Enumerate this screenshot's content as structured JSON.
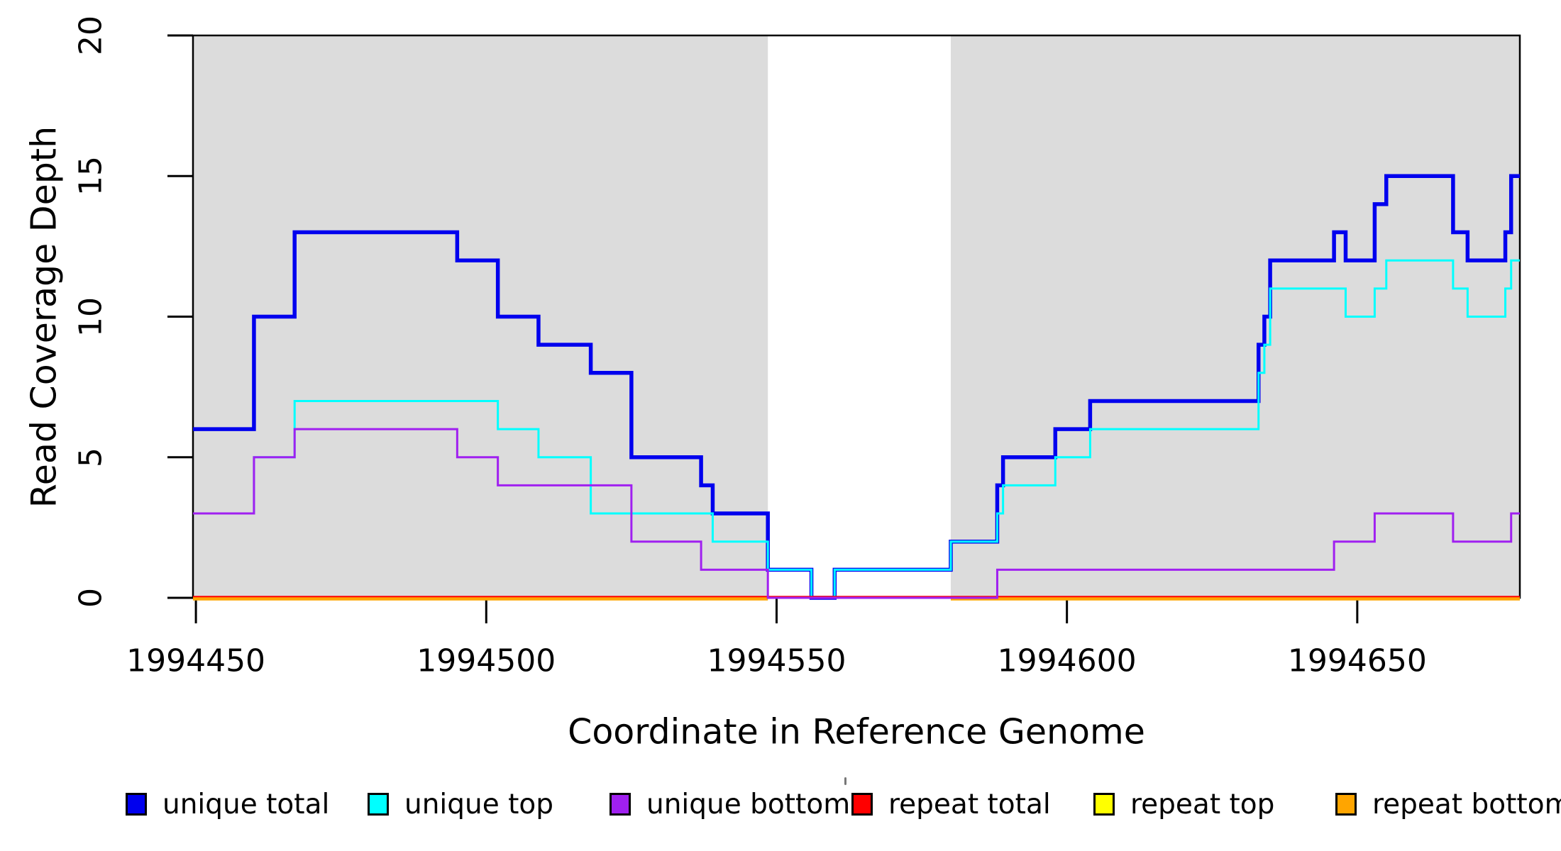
{
  "chart_data": {
    "type": "line",
    "subtype": "step",
    "title": "",
    "xlabel": "Coordinate in Reference Genome",
    "ylabel": "Read Coverage Depth",
    "x_domain": [
      1994449.5,
      1994678
    ],
    "ylim": [
      0,
      20
    ],
    "grid": false,
    "legend_position": "bottom",
    "axis_color": "#000000",
    "band_color": "#DCDCDC",
    "x_ticks": [
      {
        "value": 1994450,
        "label": "1994450"
      },
      {
        "value": 1994500,
        "label": "1994500"
      },
      {
        "value": 1994550,
        "label": "1994550"
      },
      {
        "value": 1994600,
        "label": "1994600"
      },
      {
        "value": 1994650,
        "label": "1994650"
      }
    ],
    "y_ticks": [
      {
        "value": 0,
        "label": "0"
      },
      {
        "value": 5,
        "label": "5"
      },
      {
        "value": 10,
        "label": "10"
      },
      {
        "value": 15,
        "label": "15"
      },
      {
        "value": 20,
        "label": "20"
      }
    ],
    "shaded_bands": [
      {
        "x_from": 1994449.5,
        "x_to": 1994548.5
      },
      {
        "x_from": 1994580,
        "x_to": 1994678
      }
    ],
    "series": [
      {
        "name": "unique total",
        "color": "#0000EE",
        "line_width": 5.5,
        "steps": [
          [
            1994449.5,
            6
          ],
          [
            1994460,
            10
          ],
          [
            1994467,
            13
          ],
          [
            1994495,
            12
          ],
          [
            1994502,
            10
          ],
          [
            1994509,
            9
          ],
          [
            1994518,
            8
          ],
          [
            1994525,
            5
          ],
          [
            1994537,
            4
          ],
          [
            1994539,
            3
          ],
          [
            1994548.5,
            1
          ],
          [
            1994556,
            0
          ],
          [
            1994560,
            1
          ],
          [
            1994580,
            2
          ],
          [
            1994588,
            4
          ],
          [
            1994589,
            5
          ],
          [
            1994598,
            6
          ],
          [
            1994604,
            7
          ],
          [
            1994633,
            9
          ],
          [
            1994634,
            10
          ],
          [
            1994635,
            12
          ],
          [
            1994646,
            13
          ],
          [
            1994648,
            12
          ],
          [
            1994653,
            14
          ],
          [
            1994655,
            15
          ],
          [
            1994666.5,
            13
          ],
          [
            1994669,
            12
          ],
          [
            1994675.5,
            13
          ],
          [
            1994676.5,
            15
          ]
        ]
      },
      {
        "name": "unique top",
        "color": "#00FFFF",
        "line_width": 3,
        "steps": [
          [
            1994449.5,
            3
          ],
          [
            1994460,
            5
          ],
          [
            1994467,
            7
          ],
          [
            1994502,
            6
          ],
          [
            1994509,
            5
          ],
          [
            1994518,
            3
          ],
          [
            1994539,
            2
          ],
          [
            1994548.5,
            1
          ],
          [
            1994556,
            0
          ],
          [
            1994560,
            1
          ],
          [
            1994580,
            2
          ],
          [
            1994588,
            3
          ],
          [
            1994589,
            4
          ],
          [
            1994598,
            5
          ],
          [
            1994604,
            6
          ],
          [
            1994633,
            8
          ],
          [
            1994634,
            9
          ],
          [
            1994635,
            11
          ],
          [
            1994648,
            10
          ],
          [
            1994653,
            11
          ],
          [
            1994655,
            12
          ],
          [
            1994666.5,
            11
          ],
          [
            1994669,
            10
          ],
          [
            1994675.5,
            11
          ],
          [
            1994676.5,
            12
          ]
        ]
      },
      {
        "name": "unique bottom",
        "color": "#A020F0",
        "line_width": 3,
        "steps": [
          [
            1994449.5,
            3
          ],
          [
            1994460,
            5
          ],
          [
            1994467,
            6
          ],
          [
            1994495,
            5
          ],
          [
            1994502,
            4
          ],
          [
            1994525,
            2
          ],
          [
            1994537,
            1
          ],
          [
            1994548.5,
            0
          ],
          [
            1994588,
            1
          ],
          [
            1994646,
            2
          ],
          [
            1994653,
            3
          ],
          [
            1994666.5,
            2
          ],
          [
            1994676.5,
            3
          ]
        ]
      },
      {
        "name": "repeat total",
        "color": "#FF0000",
        "line_width": 2.5,
        "steps": [
          [
            1994449.5,
            0
          ]
        ]
      },
      {
        "name": "repeat top",
        "color": "#FFFF00",
        "line_width": 2.5,
        "steps": [
          [
            1994449.5,
            0
          ]
        ]
      },
      {
        "name": "repeat bottom",
        "color": "#FFA500",
        "line_width": 4.5,
        "steps": [
          [
            1994449.5,
            0
          ]
        ]
      }
    ],
    "legend": [
      {
        "label": "unique total",
        "color": "#0000EE"
      },
      {
        "label": "unique top",
        "color": "#00FFFF"
      },
      {
        "label": "unique bottom",
        "color": "#A020F0"
      },
      {
        "label": "repeat total",
        "color": "#FF0000"
      },
      {
        "label": "repeat top",
        "color": "#FFFF00"
      },
      {
        "label": "repeat bottom",
        "color": "#FFA500"
      }
    ]
  }
}
